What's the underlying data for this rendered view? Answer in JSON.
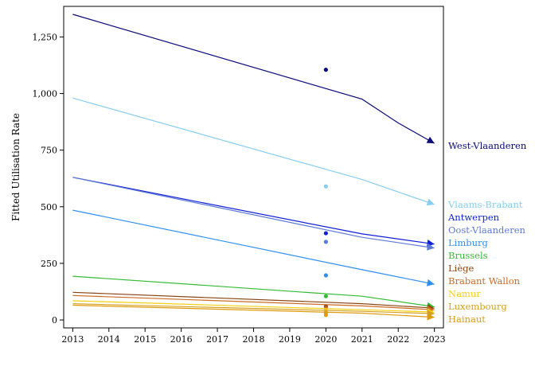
{
  "chart_data": {
    "type": "line",
    "ylabel": "Fitted Utilisation Rate",
    "xlabel": "",
    "x": [
      2013,
      2014,
      2015,
      2016,
      2017,
      2018,
      2019,
      2020,
      2021,
      2022,
      2023
    ],
    "xlim": [
      2012.75,
      2023.25
    ],
    "ylim": [
      -35,
      1385
    ],
    "yticks": [
      0,
      250,
      500,
      750,
      1000,
      1250
    ],
    "ytick_labels": [
      "0",
      "250",
      "500",
      "750",
      "1,000",
      "1,250"
    ],
    "grid": false,
    "legend": "direct labels at right end of lines",
    "observed_year": 2020,
    "series": [
      {
        "name": "West-Vlaanderen",
        "color": "#0a0a7a",
        "line_x": [
          2013,
          2021,
          2022,
          2023
        ],
        "line_y": [
          1350,
          975,
          870,
          780
        ],
        "observed": 1105
      },
      {
        "name": "Vlaams-Brabant",
        "color": "#87cdf0",
        "line_x": [
          2013,
          2021,
          2023
        ],
        "line_y": [
          980,
          620,
          510
        ],
        "observed": 590
      },
      {
        "name": "Antwerpen",
        "color": "#1020d8",
        "line_x": [
          2013,
          2021,
          2023
        ],
        "line_y": [
          630,
          380,
          335
        ],
        "observed": 383
      },
      {
        "name": "Oost-Vlaanderen",
        "color": "#5c79d6",
        "line_x": [
          2013,
          2021,
          2023
        ],
        "line_y": [
          630,
          365,
          318
        ],
        "observed": 345
      },
      {
        "name": "Limburg",
        "color": "#2f8ff0",
        "line_x": [
          2013,
          2021,
          2023
        ],
        "line_y": [
          485,
          222,
          158
        ],
        "observed": 197
      },
      {
        "name": "Brussels",
        "color": "#33bb33",
        "line_x": [
          2013,
          2021,
          2023
        ],
        "line_y": [
          193,
          105,
          58
        ],
        "observed": 105
      },
      {
        "name": "Liège",
        "color": "#8b4513",
        "line_x": [
          2013,
          2021,
          2023
        ],
        "line_y": [
          122,
          72,
          52
        ],
        "observed": 60
      },
      {
        "name": "Brabant Wallon",
        "color": "#cc6a22",
        "line_x": [
          2013,
          2021,
          2023
        ],
        "line_y": [
          108,
          62,
          45
        ],
        "observed": 52
      },
      {
        "name": "Namur",
        "color": "#f5cf10",
        "line_x": [
          2013,
          2021,
          2023
        ],
        "line_y": [
          85,
          45,
          35
        ],
        "observed": 42
      },
      {
        "name": "Luxembourg",
        "color": "#d4a020",
        "line_x": [
          2013,
          2021,
          2023
        ],
        "line_y": [
          72,
          38,
          28
        ],
        "observed": 32
      },
      {
        "name": "Hainaut",
        "color": "#e09a10",
        "line_x": [
          2013,
          2021,
          2023
        ],
        "line_y": [
          65,
          30,
          12
        ],
        "observed": 22
      }
    ]
  }
}
